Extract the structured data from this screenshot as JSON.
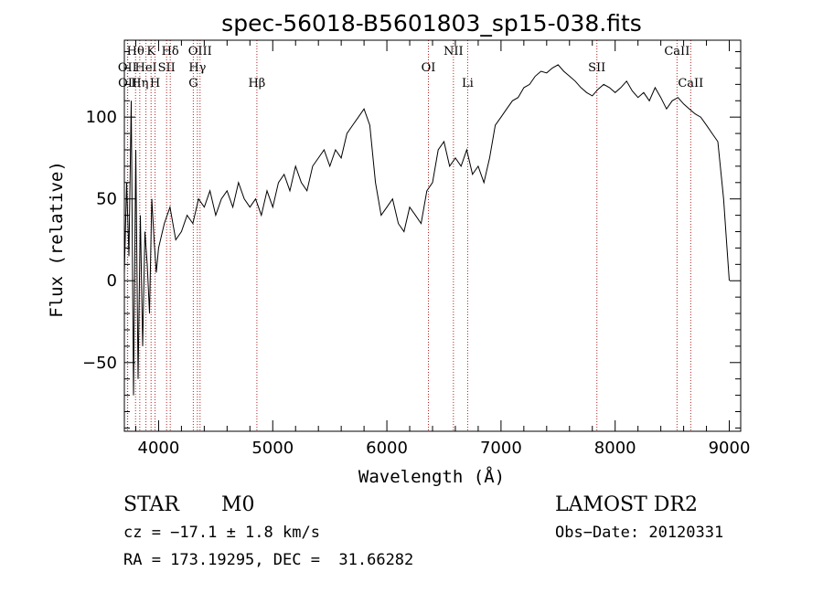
{
  "chart_data": {
    "type": "line",
    "title": "spec-56018-B5601803_sp15-038.fits",
    "xlabel": "Wavelength (Å)",
    "ylabel": "Flux (relative)",
    "xlim": [
      3700,
      9100
    ],
    "ylim": [
      -92,
      147
    ],
    "x_ticks": [
      4000,
      5000,
      6000,
      7000,
      8000,
      9000
    ],
    "y_ticks": [
      -50,
      0,
      50,
      100
    ],
    "grid": false,
    "series": [
      {
        "x": [
          3700,
          3720,
          3740,
          3760,
          3780,
          3800,
          3820,
          3840,
          3860,
          3880,
          3900,
          3920,
          3940,
          3960,
          3980,
          4000,
          4050,
          4100,
          4150,
          4200,
          4250,
          4300,
          4350,
          4400,
          4450,
          4500,
          4550,
          4600,
          4650,
          4700,
          4750,
          4800,
          4850,
          4900,
          4950,
          5000,
          5050,
          5100,
          5150,
          5200,
          5250,
          5300,
          5350,
          5400,
          5450,
          5500,
          5550,
          5600,
          5650,
          5700,
          5750,
          5800,
          5850,
          5900,
          5950,
          6000,
          6050,
          6100,
          6150,
          6200,
          6250,
          6300,
          6350,
          6400,
          6450,
          6500,
          6550,
          6600,
          6650,
          6700,
          6750,
          6800,
          6850,
          6900,
          6950,
          7000,
          7050,
          7100,
          7150,
          7200,
          7250,
          7300,
          7350,
          7400,
          7450,
          7500,
          7550,
          7600,
          7650,
          7700,
          7750,
          7800,
          7850,
          7900,
          7950,
          8000,
          8050,
          8100,
          8150,
          8200,
          8250,
          8300,
          8350,
          8400,
          8450,
          8500,
          8550,
          8600,
          8650,
          8700,
          8750,
          8800,
          8850,
          8900,
          8950,
          8980,
          9000
        ],
        "y": [
          5,
          60,
          15,
          110,
          -70,
          80,
          -60,
          40,
          -40,
          30,
          10,
          -20,
          50,
          25,
          5,
          20,
          35,
          45,
          25,
          30,
          40,
          35,
          50,
          45,
          55,
          40,
          50,
          55,
          45,
          60,
          50,
          45,
          50,
          40,
          55,
          45,
          60,
          65,
          55,
          70,
          60,
          55,
          70,
          75,
          80,
          70,
          80,
          75,
          90,
          95,
          100,
          105,
          95,
          60,
          40,
          45,
          50,
          35,
          30,
          45,
          40,
          35,
          55,
          60,
          80,
          85,
          70,
          75,
          70,
          80,
          65,
          70,
          60,
          75,
          95,
          100,
          105,
          110,
          112,
          118,
          120,
          125,
          128,
          127,
          130,
          132,
          128,
          125,
          122,
          118,
          115,
          113,
          117,
          120,
          118,
          115,
          118,
          122,
          116,
          112,
          115,
          110,
          118,
          112,
          105,
          110,
          112,
          108,
          105,
          102,
          100,
          95,
          90,
          85,
          50,
          20,
          0
        ]
      }
    ],
    "spectral_lines_top": [
      {
        "label": "Hθ",
        "x": 3798,
        "row": 1
      },
      {
        "label": "K",
        "x": 3934,
        "row": 1
      },
      {
        "label": "Hδ",
        "x": 4102,
        "row": 1
      },
      {
        "label": "OIII",
        "x": 4363,
        "row": 1
      },
      {
        "label": "NII",
        "x": 6583,
        "row": 1
      },
      {
        "label": "CaII",
        "x": 8542,
        "row": 1
      },
      {
        "label": "OII",
        "x": 3727,
        "row": 2
      },
      {
        "label": "HeI",
        "x": 3889,
        "row": 2
      },
      {
        "label": "SII",
        "x": 4070,
        "row": 2
      },
      {
        "label": "Hγ",
        "x": 4340,
        "row": 2
      },
      {
        "label": "OI",
        "x": 6364,
        "row": 2
      },
      {
        "label": "SII",
        "x": 7840,
        "row": 2
      },
      {
        "label": "OII",
        "x": 3729,
        "row": 3
      },
      {
        "label": "Hη",
        "x": 3835,
        "row": 3
      },
      {
        "label": "H",
        "x": 3969,
        "row": 3
      },
      {
        "label": "G",
        "x": 4304,
        "row": 3
      },
      {
        "label": "Hβ",
        "x": 4861,
        "row": 3
      },
      {
        "label": "Li",
        "x": 6708,
        "row": 3
      },
      {
        "label": "CaII",
        "x": 8662,
        "row": 3
      }
    ]
  },
  "info": {
    "class_label": "STAR",
    "subclass_label": "M0",
    "cz_text": "cz = −17.1 ± 1.8 km/s",
    "coords_text": "RA = 173.19295, DEC =  31.66282",
    "survey_text": "LAMOST DR2",
    "obs_date_text": "Obs−Date: 20120331"
  }
}
